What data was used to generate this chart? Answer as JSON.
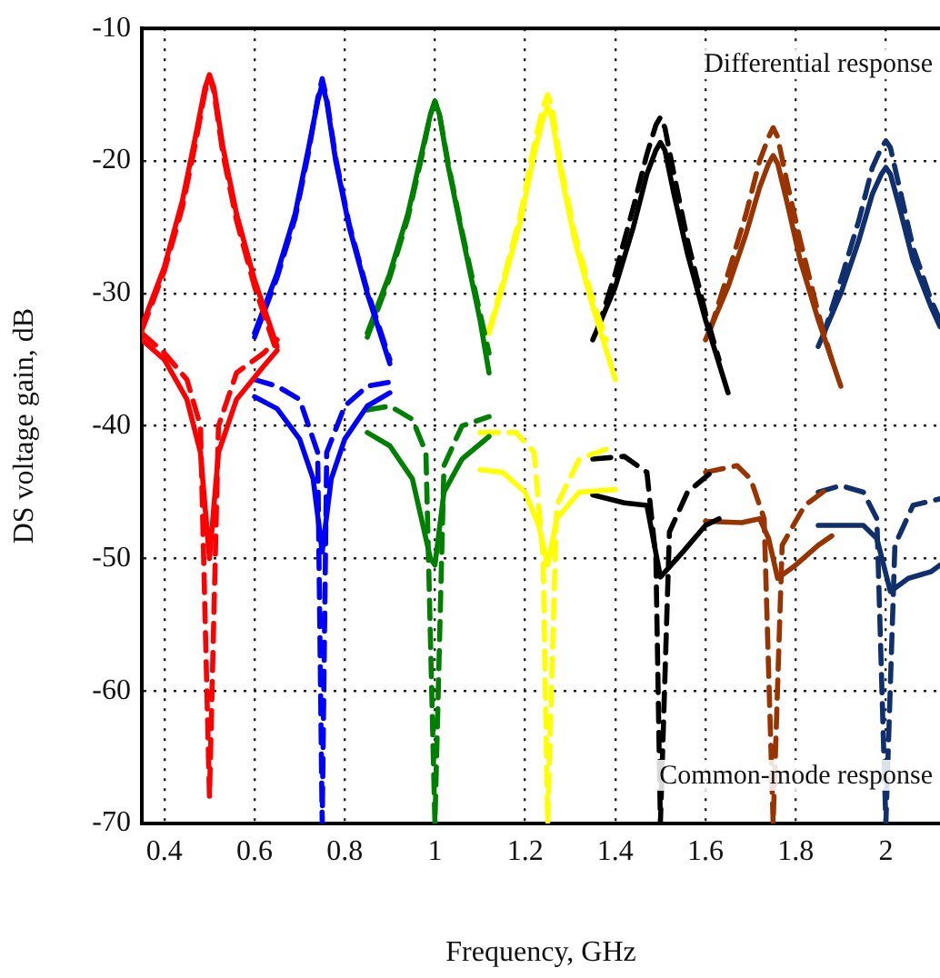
{
  "chart_data": {
    "type": "line",
    "xlabel": "Frequency, GHz",
    "ylabel": "DS voltage gain, dB",
    "annotations": [
      "Differential response",
      "Common-mode response"
    ],
    "xlim": [
      0.35,
      2.12
    ],
    "ylim": [
      -70,
      -10
    ],
    "xticks": [
      0.4,
      0.6,
      0.8,
      1,
      1.2,
      1.4,
      1.6,
      1.8,
      2
    ],
    "yticks": [
      -70,
      -60,
      -50,
      -40,
      -30,
      -20,
      -10
    ],
    "grid": true,
    "legend": false,
    "marker": "none",
    "series": [
      {
        "color": "#ff0000",
        "line_style": "solid",
        "x": [
          0.35,
          0.4,
          0.44,
          0.47,
          0.49,
          0.5,
          0.51,
          0.53,
          0.56,
          0.6,
          0.65
        ],
        "values": [
          -32.5,
          -28,
          -23,
          -18,
          -14.5,
          -13.5,
          -14.5,
          -19,
          -24,
          -29,
          -34
        ]
      },
      {
        "color": "#ff0000",
        "line_style": "dashed",
        "x": [
          0.35,
          0.4,
          0.44,
          0.47,
          0.49,
          0.5,
          0.51,
          0.53,
          0.56,
          0.6,
          0.65
        ],
        "values": [
          -32.8,
          -28.3,
          -23.5,
          -18.5,
          -14.8,
          -13.6,
          -14.8,
          -19.5,
          -24.5,
          -29.5,
          -34.5
        ]
      },
      {
        "color": "#0000ff",
        "line_style": "solid",
        "x": [
          0.6,
          0.65,
          0.69,
          0.72,
          0.74,
          0.75,
          0.76,
          0.78,
          0.81,
          0.85,
          0.9
        ],
        "values": [
          -33,
          -28.5,
          -24,
          -19,
          -15.5,
          -14.2,
          -15.5,
          -20,
          -25,
          -30,
          -35.3
        ]
      },
      {
        "color": "#0000ff",
        "line_style": "dashed",
        "x": [
          0.6,
          0.65,
          0.69,
          0.72,
          0.74,
          0.75,
          0.76,
          0.78,
          0.81,
          0.85,
          0.9
        ],
        "values": [
          -33.3,
          -28.8,
          -24.3,
          -19.3,
          -15.3,
          -13.8,
          -15.3,
          -19.8,
          -24.8,
          -29.8,
          -35
        ]
      },
      {
        "color": "#008000",
        "line_style": "solid",
        "x": [
          0.85,
          0.9,
          0.94,
          0.97,
          0.99,
          1,
          1.01,
          1.03,
          1.06,
          1.1,
          1.12
        ],
        "values": [
          -33,
          -28.5,
          -24,
          -19.5,
          -16.5,
          -15.5,
          -16.5,
          -20.5,
          -25.5,
          -32,
          -36
        ]
      },
      {
        "color": "#008000",
        "line_style": "dashed",
        "x": [
          0.85,
          0.9,
          0.94,
          0.97,
          0.99,
          1,
          1.01,
          1.03,
          1.06,
          1.1,
          1.12
        ],
        "values": [
          -33.3,
          -28.8,
          -24.3,
          -19.8,
          -16.5,
          -15.5,
          -16.5,
          -20.3,
          -25.3,
          -31.5,
          -34.5
        ]
      },
      {
        "color": "#ffff00",
        "line_style": "solid",
        "x": [
          1.12,
          1.15,
          1.19,
          1.22,
          1.24,
          1.25,
          1.26,
          1.28,
          1.31,
          1.35,
          1.4
        ],
        "values": [
          -33,
          -29.5,
          -24.5,
          -19.5,
          -16.8,
          -15.9,
          -16.8,
          -21,
          -26,
          -31,
          -36.5
        ]
      },
      {
        "color": "#ffff00",
        "line_style": "dashed",
        "x": [
          1.12,
          1.15,
          1.19,
          1.22,
          1.24,
          1.25,
          1.26,
          1.28,
          1.31,
          1.35,
          1.38
        ],
        "values": [
          -32.8,
          -29.2,
          -24,
          -18.8,
          -15.9,
          -15,
          -16,
          -20.5,
          -25.5,
          -30.5,
          -33.5
        ]
      },
      {
        "color": "#000000",
        "line_style": "solid",
        "x": [
          1.35,
          1.4,
          1.44,
          1.47,
          1.49,
          1.5,
          1.51,
          1.53,
          1.56,
          1.6,
          1.65
        ],
        "values": [
          -33.5,
          -29.5,
          -25,
          -21,
          -19.2,
          -18.6,
          -19.2,
          -22.5,
          -27,
          -32,
          -37.5
        ]
      },
      {
        "color": "#000000",
        "line_style": "dashed",
        "x": [
          1.36,
          1.4,
          1.44,
          1.47,
          1.49,
          1.5,
          1.51,
          1.53,
          1.56,
          1.6,
          1.63
        ],
        "values": [
          -32.8,
          -28.5,
          -23.5,
          -19.5,
          -17.3,
          -16.7,
          -17.5,
          -21,
          -26,
          -31.5,
          -35
        ]
      },
      {
        "color": "#993300",
        "line_style": "solid",
        "x": [
          1.6,
          1.65,
          1.69,
          1.72,
          1.74,
          1.75,
          1.76,
          1.78,
          1.81,
          1.85,
          1.9
        ],
        "values": [
          -33.5,
          -29.5,
          -25.5,
          -22,
          -20.2,
          -19.6,
          -20.2,
          -23,
          -27.5,
          -32,
          -37
        ]
      },
      {
        "color": "#993300",
        "line_style": "dashed",
        "x": [
          1.61,
          1.65,
          1.69,
          1.72,
          1.74,
          1.75,
          1.76,
          1.78,
          1.81,
          1.85,
          1.88
        ],
        "values": [
          -32.8,
          -28.5,
          -24,
          -20,
          -18.2,
          -17.5,
          -18.2,
          -21.5,
          -26,
          -31.5,
          -35
        ]
      },
      {
        "color": "#0f2f6f",
        "line_style": "solid",
        "x": [
          1.85,
          1.9,
          1.94,
          1.97,
          1.99,
          2,
          2.01,
          2.03,
          2.06,
          2.1,
          2.12
        ],
        "values": [
          -34,
          -30,
          -26,
          -22.5,
          -21,
          -20.5,
          -21,
          -23.5,
          -27.5,
          -31,
          -32.5
        ]
      },
      {
        "color": "#0f2f6f",
        "line_style": "dashed",
        "x": [
          1.86,
          1.9,
          1.94,
          1.97,
          1.99,
          2,
          2.01,
          2.03,
          2.06,
          2.1,
          2.12
        ],
        "values": [
          -33.3,
          -29,
          -24.5,
          -20.5,
          -19,
          -18.5,
          -19,
          -22,
          -26.5,
          -30.5,
          -32
        ]
      },
      {
        "color": "#ff0000",
        "line_style": "solid",
        "x": [
          0.35,
          0.4,
          0.45,
          0.48,
          0.5,
          0.52,
          0.56,
          0.62,
          0.65
        ],
        "values": [
          -33.5,
          -35,
          -38,
          -42,
          -50,
          -42,
          -38,
          -35.5,
          -34.3
        ]
      },
      {
        "color": "#ff0000",
        "line_style": "dashed",
        "x": [
          0.35,
          0.4,
          0.45,
          0.48,
          0.5,
          0.52,
          0.56,
          0.62,
          0.65
        ],
        "values": [
          -33,
          -34.5,
          -36.5,
          -40,
          -68,
          -40,
          -36,
          -34.5,
          -33.5
        ]
      },
      {
        "color": "#0000ff",
        "line_style": "solid",
        "x": [
          0.6,
          0.65,
          0.7,
          0.73,
          0.75,
          0.77,
          0.8,
          0.85,
          0.9
        ],
        "values": [
          -37.8,
          -38.7,
          -41,
          -44,
          -49.5,
          -44,
          -41,
          -38.5,
          -37.5
        ]
      },
      {
        "color": "#0000ff",
        "line_style": "dashed",
        "x": [
          0.6,
          0.65,
          0.7,
          0.74,
          0.75,
          0.76,
          0.8,
          0.85,
          0.9
        ],
        "values": [
          -36.5,
          -37,
          -38,
          -42,
          -70,
          -42,
          -38.5,
          -37,
          -36.7
        ]
      },
      {
        "color": "#008000",
        "line_style": "solid",
        "x": [
          0.85,
          0.9,
          0.95,
          0.99,
          1,
          1.02,
          1.06,
          1.12
        ],
        "values": [
          -40.5,
          -41.5,
          -44,
          -50,
          -50.5,
          -45,
          -42.5,
          -40.8
        ]
      },
      {
        "color": "#008000",
        "line_style": "dashed",
        "x": [
          0.85,
          0.9,
          0.95,
          0.98,
          1,
          1.02,
          1.06,
          1.12
        ],
        "values": [
          -38.8,
          -38.5,
          -39.5,
          -42,
          -70,
          -43,
          -40,
          -39.3
        ]
      },
      {
        "color": "#ffff00",
        "line_style": "solid",
        "x": [
          1.1,
          1.15,
          1.2,
          1.23,
          1.25,
          1.27,
          1.32,
          1.4
        ],
        "values": [
          -43.3,
          -43.5,
          -45,
          -47.5,
          -50.5,
          -47,
          -45,
          -44.8
        ]
      },
      {
        "color": "#ffff00",
        "line_style": "dashed",
        "x": [
          1.1,
          1.18,
          1.22,
          1.24,
          1.25,
          1.27,
          1.32,
          1.4
        ],
        "values": [
          -40.5,
          -40.5,
          -42,
          -50,
          -70,
          -46,
          -42.5,
          -41.5
        ]
      },
      {
        "color": "#000000",
        "line_style": "solid",
        "x": [
          1.35,
          1.42,
          1.47,
          1.5,
          1.55,
          1.6,
          1.63
        ],
        "values": [
          -45.2,
          -45.8,
          -46,
          -51.4,
          -49.5,
          -47.5,
          -47
        ]
      },
      {
        "color": "#000000",
        "line_style": "dashed",
        "x": [
          1.35,
          1.42,
          1.47,
          1.49,
          1.5,
          1.52,
          1.56,
          1.62
        ],
        "values": [
          -42.5,
          -42.3,
          -43.5,
          -50,
          -70,
          -48,
          -45,
          -43.3
        ]
      },
      {
        "color": "#993300",
        "line_style": "solid",
        "x": [
          1.6,
          1.68,
          1.72,
          1.74,
          1.76,
          1.8,
          1.85,
          1.88
        ],
        "values": [
          -47.2,
          -47.3,
          -47,
          -48.5,
          -51.5,
          -50.5,
          -49,
          -48.3
        ]
      },
      {
        "color": "#993300",
        "line_style": "dashed",
        "x": [
          1.6,
          1.67,
          1.7,
          1.73,
          1.75,
          1.77,
          1.82,
          1.88
        ],
        "values": [
          -43.5,
          -43,
          -44,
          -47,
          -70,
          -49,
          -46,
          -44.5
        ]
      },
      {
        "color": "#0f2f6f",
        "line_style": "solid",
        "x": [
          1.85,
          1.9,
          1.95,
          1.98,
          2.01,
          2.05,
          2.1,
          2.12
        ],
        "values": [
          -47.5,
          -47.5,
          -47.5,
          -48.5,
          -52.5,
          -51.5,
          -51,
          -50.5
        ]
      },
      {
        "color": "#0f2f6f",
        "line_style": "dashed",
        "x": [
          1.85,
          1.9,
          1.95,
          1.98,
          2,
          2.02,
          2.06,
          2.12
        ],
        "values": [
          -45,
          -44.5,
          -45,
          -47,
          -70,
          -49,
          -46,
          -45.5
        ]
      }
    ]
  }
}
